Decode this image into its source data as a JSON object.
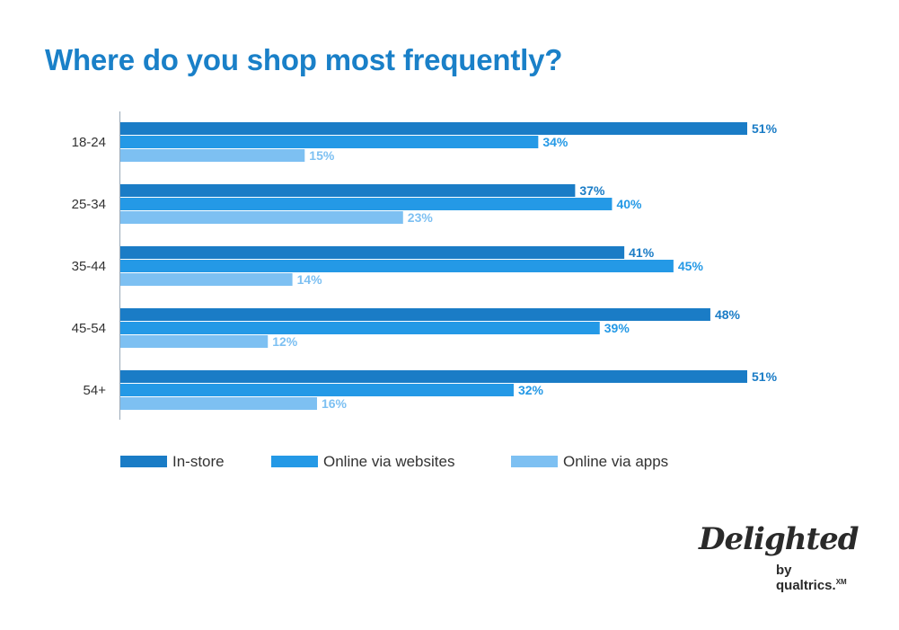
{
  "chart_data": {
    "type": "bar",
    "orientation": "horizontal",
    "title": "Where do you shop most frequently?",
    "categories": [
      "18-24",
      "25-34",
      "35-44",
      "45-54",
      "54+"
    ],
    "series": [
      {
        "name": "In-store",
        "color": "#1a7cc6",
        "labelColor": "#1a7cc6",
        "values": [
          51,
          37,
          41,
          48,
          51
        ],
        "labels": [
          "51%",
          "37%",
          "41%",
          "48%",
          "51%"
        ]
      },
      {
        "name": "Online via websites",
        "color": "#2499e6",
        "labelColor": "#2499e6",
        "values": [
          34,
          40,
          45,
          39,
          32
        ],
        "labels": [
          "34%",
          "40%",
          "45%",
          "39%",
          "32%"
        ]
      },
      {
        "name": "Online via apps",
        "color": "#7dc0f2",
        "labelColor": "#7dc0f2",
        "values": [
          15,
          23,
          14,
          12,
          16
        ],
        "labels": [
          "15%",
          "23%",
          "14%",
          "12%",
          "16%"
        ]
      }
    ],
    "xlim": [
      0,
      51
    ],
    "grid": false,
    "legend": "bottom"
  },
  "brand": {
    "logo_text": "Delighted",
    "byline": "by qualtrics.",
    "byline_mark": "XM"
  }
}
